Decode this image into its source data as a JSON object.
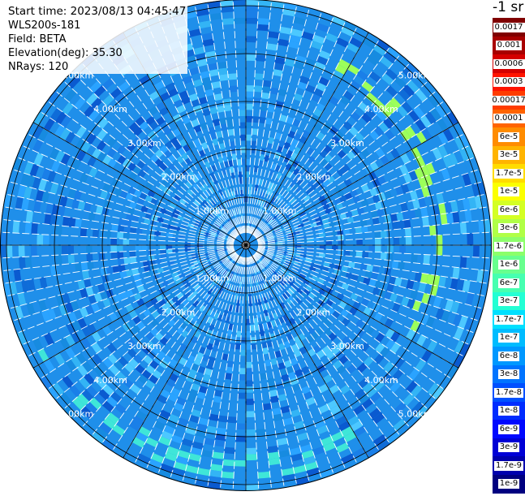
{
  "info": {
    "start_time": "Start time: 2023/08/13 04:45:47",
    "instrument": "WLS200s-181",
    "field": "Field: BETA",
    "elevation": "Elevation(deg): 35.30",
    "nrays": "NRays: 120"
  },
  "unit_label": "-1 sr",
  "colorbar": {
    "labels": [
      "0.0017",
      "0.001",
      "0.0006",
      "0.0003",
      "0.00017",
      "0.0001",
      "6e-5",
      "3e-5",
      "1.7e-5",
      "1e-5",
      "6e-6",
      "3e-6",
      "1.7e-6",
      "1e-6",
      "6e-7",
      "3e-7",
      "1.7e-7",
      "1e-7",
      "6e-8",
      "3e-8",
      "1.7e-8",
      "1e-8",
      "6e-9",
      "3e-9",
      "1.7e-9",
      "1e-9"
    ],
    "colors": [
      "#800000",
      "#a80000",
      "#d40000",
      "#ff1400",
      "#ff3c00",
      "#ff6400",
      "#ff8c00",
      "#ffb400",
      "#ffdc00",
      "#fbff00",
      "#d4ff23",
      "#b0ff46",
      "#8cff6a",
      "#68ff8e",
      "#46ffb0",
      "#23ffd4",
      "#00e0ff",
      "#00bcff",
      "#0098ff",
      "#0074ff",
      "#0050ff",
      "#002cff",
      "#0008ff",
      "#0000d6",
      "#0000ad",
      "#000080"
    ]
  },
  "range_rings": {
    "labels": [
      "1.00km",
      "2.00km",
      "3.00km",
      "4.00km",
      "5.00km"
    ]
  },
  "colors": {
    "background_field": "#1f8fea",
    "grid": "#000000",
    "ray_separator": "#ffffff"
  }
}
